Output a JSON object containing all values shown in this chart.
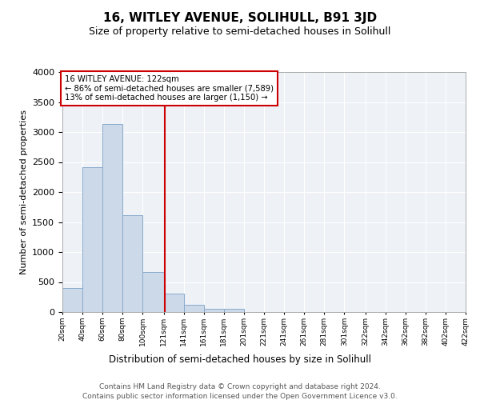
{
  "title": "16, WITLEY AVENUE, SOLIHULL, B91 3JD",
  "subtitle": "Size of property relative to semi-detached houses in Solihull",
  "xlabel": "Distribution of semi-detached houses by size in Solihull",
  "ylabel": "Number of semi-detached properties",
  "footer1": "Contains HM Land Registry data © Crown copyright and database right 2024.",
  "footer2": "Contains public sector information licensed under the Open Government Licence v3.0.",
  "annotation_title": "16 WITLEY AVENUE: 122sqm",
  "annotation_line1": "← 86% of semi-detached houses are smaller (7,589)",
  "annotation_line2": "13% of semi-detached houses are larger (1,150) →",
  "property_line_x": 122,
  "bin_edges": [
    20,
    40,
    60,
    80,
    100,
    121,
    141,
    161,
    181,
    201,
    221,
    241,
    261,
    281,
    301,
    322,
    342,
    362,
    382,
    402,
    422
  ],
  "bin_counts": [
    400,
    2420,
    3130,
    1620,
    670,
    310,
    120,
    60,
    50,
    0,
    0,
    0,
    0,
    0,
    0,
    0,
    0,
    0,
    0,
    0
  ],
  "bar_color": "#ccd9e8",
  "bar_edge_color": "#89aacc",
  "property_line_color": "#cc0000",
  "annotation_box_color": "#cc0000",
  "background_color": "#eef2f7",
  "ylim": [
    0,
    4000
  ],
  "tick_labels": [
    "20sqm",
    "40sqm",
    "60sqm",
    "80sqm",
    "100sqm",
    "121sqm",
    "141sqm",
    "161sqm",
    "181sqm",
    "201sqm",
    "221sqm",
    "241sqm",
    "261sqm",
    "281sqm",
    "301sqm",
    "322sqm",
    "342sqm",
    "362sqm",
    "382sqm",
    "402sqm",
    "422sqm"
  ]
}
